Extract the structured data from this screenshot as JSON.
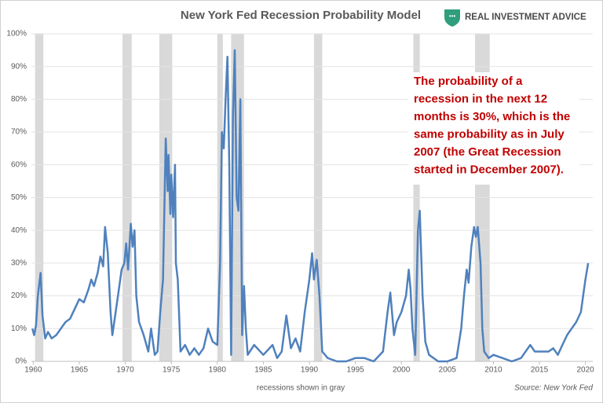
{
  "chart_data": {
    "type": "line",
    "title": "New York Fed Recession Probability Model",
    "brand": "REAL INVESTMENT ADVICE",
    "annotation": [
      "The probability of a",
      "recession in the next 12",
      "months is 30%, which is the",
      "same probability as in July",
      "2007 (the Great Recession",
      "started in December 2007)."
    ],
    "x_label": "recessions shown in gray",
    "source": "Source: New York Fed",
    "recessions": [
      [
        1960.2,
        1961.1
      ],
      [
        1969.7,
        1970.7
      ],
      [
        1973.7,
        1975.1
      ],
      [
        1980.0,
        1980.6
      ],
      [
        1981.5,
        1982.9
      ],
      [
        1990.5,
        1991.4
      ],
      [
        2001.3,
        2002.0
      ],
      [
        2008.0,
        2009.6
      ]
    ],
    "recession_color": "#d9d9d9",
    "xlim": [
      1959.8,
      2020.8
    ],
    "xticks": [
      1960,
      1965,
      1970,
      1975,
      1980,
      1985,
      1990,
      1995,
      2000,
      2005,
      2010,
      2015,
      2020
    ],
    "ylim": [
      0,
      100
    ],
    "yticks": [
      {
        "value": 0,
        "label": "0%"
      },
      {
        "value": 10,
        "label": "10%"
      },
      {
        "value": 20,
        "label": "20%"
      },
      {
        "value": 30,
        "label": "30%"
      },
      {
        "value": 40,
        "label": "40%"
      },
      {
        "value": 50,
        "label": "50%"
      },
      {
        "value": 60,
        "label": "60%"
      },
      {
        "value": 70,
        "label": "70%"
      },
      {
        "value": 80,
        "label": "80%"
      },
      {
        "value": 90,
        "label": "90%"
      },
      {
        "value": 100,
        "label": "100%"
      }
    ],
    "grid": true,
    "color": "#4f81bd",
    "x": [
      1959.9,
      1960.1,
      1960.3,
      1960.5,
      1960.8,
      1961.0,
      1961.3,
      1961.6,
      1962,
      1962.5,
      1963,
      1963.5,
      1964,
      1964.5,
      1965,
      1965.5,
      1966,
      1966.3,
      1966.6,
      1967,
      1967.3,
      1967.6,
      1967.8,
      1968.1,
      1968.4,
      1968.6,
      1968.9,
      1969.3,
      1969.6,
      1969.9,
      1970.1,
      1970.3,
      1970.6,
      1970.8,
      1971,
      1971.2,
      1971.5,
      1972,
      1972.5,
      1972.8,
      1973.2,
      1973.5,
      1973.8,
      1974.1,
      1974.4,
      1974.6,
      1974.7,
      1974.9,
      1975.0,
      1975.2,
      1975.4,
      1975.5,
      1975.7,
      1976,
      1976.5,
      1977,
      1977.5,
      1978,
      1978.5,
      1979,
      1979.5,
      1980,
      1980.3,
      1980.5,
      1980.7,
      1980.9,
      1981.1,
      1981.3,
      1981.5,
      1981.7,
      1981.9,
      1982.1,
      1982.3,
      1982.5,
      1982.7,
      1982.9,
      1983.1,
      1983.3,
      1984,
      1985,
      1986,
      1986.5,
      1987,
      1987.5,
      1988,
      1988.5,
      1989,
      1989.5,
      1990,
      1990.3,
      1990.5,
      1990.8,
      1991.1,
      1991.4,
      1992,
      1993,
      1994,
      1995,
      1996,
      1997,
      1998,
      1998.5,
      1998.8,
      1999.2,
      1999.5,
      2000,
      2000.5,
      2000.8,
      2001.0,
      2001.2,
      2001.5,
      2001.8,
      2002.0,
      2002.3,
      2002.6,
      2003,
      2004,
      2005,
      2006,
      2006.5,
      2006.8,
      2007.1,
      2007.3,
      2007.6,
      2007.9,
      2008.1,
      2008.3,
      2008.6,
      2008.8,
      2009,
      2009.5,
      2010,
      2011,
      2012,
      2013,
      2014,
      2014.5,
      2015,
      2016,
      2016.5,
      2017,
      2017.5,
      2018,
      2018.5,
      2019,
      2019.5,
      2020,
      2020.3
    ],
    "values": [
      10,
      8,
      11,
      20,
      27,
      14,
      7,
      9,
      7,
      8,
      10,
      12,
      13,
      16,
      19,
      18,
      22,
      25,
      23,
      27,
      32,
      29,
      41,
      33,
      15,
      8,
      14,
      22,
      28,
      30,
      36,
      28,
      42,
      35,
      40,
      20,
      12,
      8,
      3,
      10,
      2,
      3,
      15,
      25,
      68,
      52,
      63,
      45,
      57,
      44,
      60,
      30,
      25,
      3,
      5,
      2,
      4,
      2,
      4,
      10,
      6,
      5,
      30,
      70,
      65,
      80,
      93,
      60,
      2,
      75,
      95,
      50,
      46,
      80,
      8,
      23,
      10,
      2,
      5,
      2,
      5,
      1,
      3,
      14,
      4,
      7,
      3,
      15,
      25,
      33,
      25,
      31,
      20,
      3,
      1,
      0,
      0,
      1,
      1,
      0,
      3,
      15,
      21,
      8,
      12,
      15,
      20,
      28,
      22,
      10,
      2,
      40,
      46,
      20,
      6,
      2,
      0,
      0,
      1,
      10,
      20,
      28,
      24,
      35,
      41,
      38,
      41,
      30,
      10,
      3,
      1,
      2,
      1,
      0,
      1,
      5,
      3,
      3,
      3,
      4,
      2,
      5,
      8,
      10,
      12,
      15,
      25,
      30
    ]
  }
}
